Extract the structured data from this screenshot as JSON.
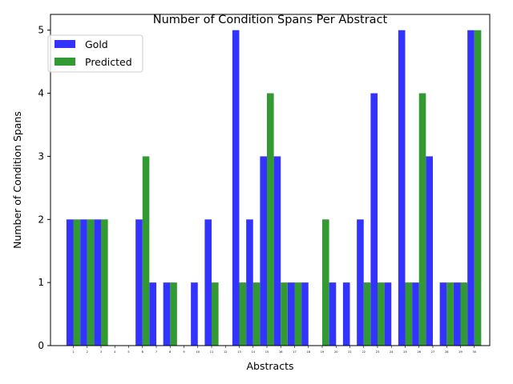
{
  "chart_data": {
    "type": "bar",
    "title": "Number of Condition Spans Per Abstract",
    "xlabel": "Abstracts",
    "ylabel": "Number of Condition Spans",
    "ylim": [
      0,
      5.25
    ],
    "yticks": [
      0,
      1,
      2,
      3,
      4,
      5
    ],
    "grid": false,
    "legend_position": "top-left",
    "categories": [
      "1",
      "2",
      "3",
      "4",
      "5",
      "6",
      "7",
      "8",
      "9",
      "10",
      "11",
      "12",
      "13",
      "14",
      "15",
      "16",
      "17",
      "18",
      "19",
      "20",
      "21",
      "22",
      "23",
      "24",
      "25",
      "26",
      "27",
      "28",
      "29",
      "30"
    ],
    "series": [
      {
        "name": "Gold",
        "color": "#0000ff",
        "values": [
          2,
          2,
          2,
          0,
          0,
          2,
          1,
          1,
          0,
          1,
          2,
          0,
          5,
          2,
          3,
          3,
          1,
          1,
          0,
          1,
          1,
          2,
          4,
          1,
          5,
          1,
          3,
          1,
          1,
          5
        ]
      },
      {
        "name": "Predicted",
        "color": "#008000",
        "values": [
          2,
          2,
          2,
          0,
          0,
          3,
          0,
          1,
          0,
          0,
          1,
          0,
          1,
          1,
          4,
          1,
          1,
          0,
          2,
          0,
          0,
          1,
          1,
          0,
          1,
          4,
          0,
          1,
          1,
          5
        ]
      }
    ]
  }
}
